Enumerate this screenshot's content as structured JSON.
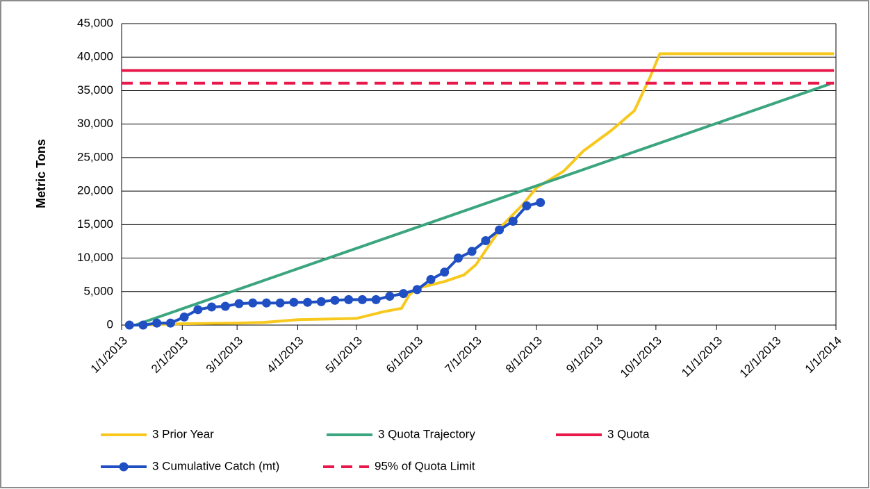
{
  "chart_data": {
    "type": "line",
    "y_label": "Metric Tons",
    "xlim": [
      "1/1/2013",
      "1/1/2014"
    ],
    "xticks": [
      "1/1/2013",
      "2/1/2013",
      "3/1/2013",
      "4/1/2013",
      "5/1/2013",
      "6/1/2013",
      "7/1/2013",
      "8/1/2013",
      "9/1/2013",
      "10/1/2013",
      "11/1/2013",
      "12/1/2013",
      "1/1/2014"
    ],
    "ylim": [
      0,
      45000
    ],
    "yticks": [
      0,
      {
        "value": 5000,
        "label": "5,000"
      },
      {
        "value": 10000,
        "label": "10,000"
      },
      {
        "value": 15000,
        "label": "15,000"
      },
      {
        "value": 20000,
        "label": "20,000"
      },
      {
        "value": 25000,
        "label": "25,000"
      },
      {
        "value": 30000,
        "label": "30,000"
      },
      {
        "value": 35000,
        "label": "35,000"
      },
      {
        "value": 40000,
        "label": "40,000"
      },
      {
        "value": 45000,
        "label": "45,000"
      }
    ],
    "grid": true,
    "legend": "bottom",
    "series": [
      {
        "name": "3 Prior Year",
        "color": "#f7c81e",
        "x": [
          "1/8/2013",
          "2/1/2013",
          "3/1/2013",
          "3/15/2013",
          "4/1/2013",
          "5/1/2013",
          "5/15/2013",
          "5/24/2013",
          "5/28/2013",
          "6/1/2013",
          "6/15/2013",
          "6/25/2013",
          "7/1/2013",
          "7/8/2013",
          "7/15/2013",
          "7/25/2013",
          "8/1/2013",
          "8/15/2013",
          "8/25/2013",
          "9/8/2013",
          "9/20/2013",
          "9/28/2013",
          "10/3/2013",
          "12/31/2013"
        ],
        "values": [
          0,
          200,
          300,
          400,
          800,
          1000,
          2000,
          2500,
          4500,
          5500,
          6500,
          7500,
          9000,
          12000,
          15000,
          18000,
          20500,
          23000,
          26000,
          29000,
          32000,
          37000,
          40500,
          40500
        ]
      },
      {
        "name": "3 Quota Trajectory",
        "color": "#3aa57e",
        "x": [
          "1/8/2013",
          "12/29/2013"
        ],
        "values": [
          0,
          36000
        ]
      },
      {
        "name": "3 Quota",
        "color": "#e8194a",
        "x": [
          "1/1/2013",
          "12/31/2013"
        ],
        "values": [
          38000,
          38000
        ]
      },
      {
        "name": "3 Cumulative Catch (mt)",
        "color": "#1f4fc2",
        "markers": true,
        "x": [
          "1/5/2013",
          "1/12/2013",
          "1/19/2013",
          "1/26/2013",
          "2/2/2013",
          "2/9/2013",
          "2/16/2013",
          "2/23/2013",
          "3/2/2013",
          "3/9/2013",
          "3/16/2013",
          "3/23/2013",
          "3/30/2013",
          "4/6/2013",
          "4/13/2013",
          "4/20/2013",
          "4/27/2013",
          "5/4/2013",
          "5/11/2013",
          "5/18/2013",
          "5/25/2013",
          "6/1/2013",
          "6/8/2013",
          "6/15/2013",
          "6/22/2013",
          "6/29/2013",
          "7/6/2013",
          "7/13/2013",
          "7/20/2013",
          "7/27/2013",
          "8/3/2013"
        ],
        "values": [
          0,
          0,
          300,
          300,
          1200,
          2300,
          2700,
          2800,
          3200,
          3300,
          3300,
          3300,
          3400,
          3400,
          3500,
          3700,
          3800,
          3800,
          3800,
          4300,
          4700,
          5300,
          6800,
          7900,
          10000,
          11000,
          12600,
          14200,
          15500,
          17800,
          18300
        ]
      },
      {
        "name": "95% of Quota Limit",
        "color": "#e8194a",
        "dashed": true,
        "x": [
          "1/1/2013",
          "12/31/2013"
        ],
        "values": [
          36100,
          36100
        ]
      }
    ]
  }
}
